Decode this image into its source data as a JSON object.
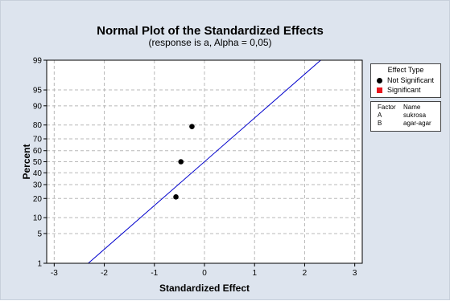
{
  "chart_data": {
    "type": "scatter",
    "title": "Normal Plot of the Standardized Effects",
    "subtitle": "(response is a, Alpha = 0,05)",
    "xlabel": "Standardized Effect",
    "ylabel": "Percent",
    "xlim": [
      -3.15,
      3.15
    ],
    "x_ticks": [
      "-3",
      "-2",
      "-1",
      "0",
      "1",
      "2",
      "3"
    ],
    "y_ticks": [
      "1",
      "5",
      "10",
      "20",
      "30",
      "40",
      "50",
      "60",
      "70",
      "80",
      "90",
      "95",
      "99"
    ],
    "y_scale": "normal-probability",
    "grid": true,
    "points": [
      {
        "x": -0.57,
        "y": 21
      },
      {
        "x": -0.47,
        "y": 50
      },
      {
        "x": -0.25,
        "y": 79
      }
    ],
    "fit_line": {
      "x_at_1pct": -2.32,
      "x_at_99pct": 2.32,
      "color": "#0000cc"
    }
  },
  "legend": {
    "title": "Effect Type",
    "items": [
      {
        "label": "Not Significant",
        "color": "#000000",
        "symbol": "dot"
      },
      {
        "label": "Significant",
        "color": "#e8141c",
        "symbol": "square"
      }
    ]
  },
  "factors": {
    "header_factor": "Factor",
    "header_name": "Name",
    "rows": [
      {
        "factor": "A",
        "name": "sukrosa"
      },
      {
        "factor": "B",
        "name": "agar-agar"
      }
    ]
  }
}
